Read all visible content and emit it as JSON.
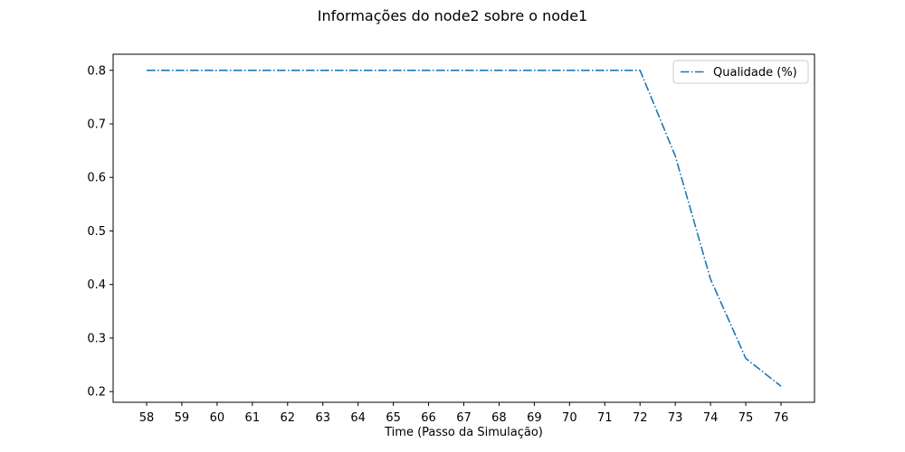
{
  "chart_data": {
    "type": "line",
    "title": "Informações do node2 sobre o node1",
    "xlabel": "Time (Passo da Simulação)",
    "ylabel": "",
    "x": [
      58,
      59,
      60,
      61,
      62,
      63,
      64,
      65,
      66,
      67,
      68,
      69,
      70,
      71,
      72,
      73,
      74,
      75,
      76
    ],
    "series": [
      {
        "name": "Qualidade (%)",
        "values": [
          0.8,
          0.8,
          0.8,
          0.8,
          0.8,
          0.8,
          0.8,
          0.8,
          0.8,
          0.8,
          0.8,
          0.8,
          0.8,
          0.8,
          0.8,
          0.64,
          0.41,
          0.262,
          0.21
        ],
        "color": "#1f77b4",
        "linestyle": "dashdot"
      }
    ],
    "xticks": [
      "58",
      "59",
      "60",
      "61",
      "62",
      "63",
      "64",
      "65",
      "66",
      "67",
      "68",
      "69",
      "70",
      "71",
      "72",
      "73",
      "74",
      "75",
      "76"
    ],
    "yticks": [
      "0.2",
      "0.3",
      "0.4",
      "0.5",
      "0.6",
      "0.7",
      "0.8"
    ],
    "xlim": [
      57.05,
      76.95
    ],
    "ylim": [
      0.18,
      0.83
    ],
    "grid": false,
    "legend_position": "upper right"
  }
}
